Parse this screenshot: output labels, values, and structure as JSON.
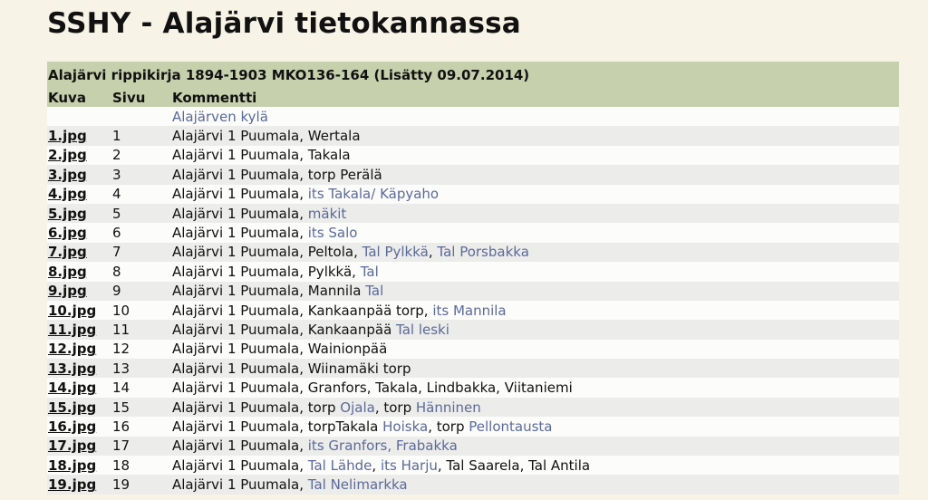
{
  "page": {
    "title": "SSHY - Alajärvi tietokannassa"
  },
  "table": {
    "caption": "Alajärvi rippikirja 1894-1903 MKO136-164 (Lisätty 09.07.2014)",
    "headers": {
      "kuva": "Kuva",
      "sivu": "Sivu",
      "kommentti": "Kommentti"
    },
    "section_label": "Alajärven kylä",
    "colors": {
      "header_bg": "#c7d0ad",
      "link": "#5b6a9a",
      "row_alt": "#ececea"
    },
    "rows": [
      {
        "kuva": "1.jpg",
        "sivu": "1",
        "parts": [
          {
            "t": "Alajärvi 1 Puumala, Wertala",
            "link": false
          }
        ]
      },
      {
        "kuva": "2.jpg",
        "sivu": "2",
        "parts": [
          {
            "t": "Alajärvi 1 Puumala, Takala",
            "link": false
          }
        ]
      },
      {
        "kuva": "3.jpg",
        "sivu": "3",
        "parts": [
          {
            "t": "Alajärvi 1 Puumala, torp Perälä",
            "link": false
          }
        ]
      },
      {
        "kuva": "4.jpg",
        "sivu": "4",
        "parts": [
          {
            "t": "Alajärvi 1 Puumala, ",
            "link": false
          },
          {
            "t": "its Takala/ Käpyaho",
            "link": true
          }
        ]
      },
      {
        "kuva": "5.jpg",
        "sivu": "5",
        "parts": [
          {
            "t": "Alajärvi 1 Puumala, ",
            "link": false
          },
          {
            "t": "mäkit",
            "link": true
          }
        ]
      },
      {
        "kuva": "6.jpg",
        "sivu": "6",
        "parts": [
          {
            "t": "Alajärvi 1 Puumala, ",
            "link": false
          },
          {
            "t": "its Salo",
            "link": true
          }
        ]
      },
      {
        "kuva": "7.jpg",
        "sivu": "7",
        "parts": [
          {
            "t": "Alajärvi 1 Puumala, Peltola, ",
            "link": false
          },
          {
            "t": "Tal Pylkkä",
            "link": true
          },
          {
            "t": ", ",
            "link": false
          },
          {
            "t": "Tal Porsbakka",
            "link": true
          }
        ]
      },
      {
        "kuva": "8.jpg",
        "sivu": "8",
        "parts": [
          {
            "t": "Alajärvi 1 Puumala, Pylkkä, ",
            "link": false
          },
          {
            "t": "Tal",
            "link": true
          }
        ]
      },
      {
        "kuva": "9.jpg",
        "sivu": "9",
        "parts": [
          {
            "t": "Alajärvi 1 Puumala, Mannila ",
            "link": false
          },
          {
            "t": "Tal",
            "link": true
          }
        ]
      },
      {
        "kuva": "10.jpg",
        "sivu": "10",
        "parts": [
          {
            "t": "Alajärvi 1 Puumala, Kankaanpää torp, ",
            "link": false
          },
          {
            "t": "its Mannila",
            "link": true
          }
        ]
      },
      {
        "kuva": "11.jpg",
        "sivu": "11",
        "parts": [
          {
            "t": "Alajärvi 1 Puumala, Kankaanpää ",
            "link": false
          },
          {
            "t": "Tal leski",
            "link": true
          }
        ]
      },
      {
        "kuva": "12.jpg",
        "sivu": "12",
        "parts": [
          {
            "t": "Alajärvi 1 Puumala, Wainionpää",
            "link": false
          }
        ]
      },
      {
        "kuva": "13.jpg",
        "sivu": "13",
        "parts": [
          {
            "t": "Alajärvi 1 Puumala, Wiinamäki torp",
            "link": false
          }
        ]
      },
      {
        "kuva": "14.jpg",
        "sivu": "14",
        "parts": [
          {
            "t": "Alajärvi 1 Puumala, Granfors, Takala, Lindbakka, Viitaniemi",
            "link": false
          }
        ]
      },
      {
        "kuva": "15.jpg",
        "sivu": "15",
        "parts": [
          {
            "t": "Alajärvi 1 Puumala, torp ",
            "link": false
          },
          {
            "t": "Ojala",
            "link": true
          },
          {
            "t": ", torp ",
            "link": false
          },
          {
            "t": "Hänninen",
            "link": true
          }
        ]
      },
      {
        "kuva": "16.jpg",
        "sivu": "16",
        "parts": [
          {
            "t": "Alajärvi 1 Puumala, torpTakala ",
            "link": false
          },
          {
            "t": "Hoiska",
            "link": true
          },
          {
            "t": ", torp ",
            "link": false
          },
          {
            "t": "Pellontausta",
            "link": true
          }
        ]
      },
      {
        "kuva": "17.jpg",
        "sivu": "17",
        "parts": [
          {
            "t": "Alajärvi 1 Puumala, ",
            "link": false
          },
          {
            "t": "its Granfors, Frabakka",
            "link": true
          }
        ]
      },
      {
        "kuva": "18.jpg",
        "sivu": "18",
        "parts": [
          {
            "t": "Alajärvi 1 Puumala, ",
            "link": false
          },
          {
            "t": "Tal Lähde",
            "link": true
          },
          {
            "t": ", ",
            "link": false
          },
          {
            "t": "its Harju",
            "link": true
          },
          {
            "t": ", Tal Saarela, Tal Antila",
            "link": false
          }
        ]
      },
      {
        "kuva": "19.jpg",
        "sivu": "19",
        "parts": [
          {
            "t": "Alajärvi 1 Puumala, ",
            "link": false
          },
          {
            "t": "Tal Nelimarkka",
            "link": true
          }
        ]
      }
    ]
  }
}
